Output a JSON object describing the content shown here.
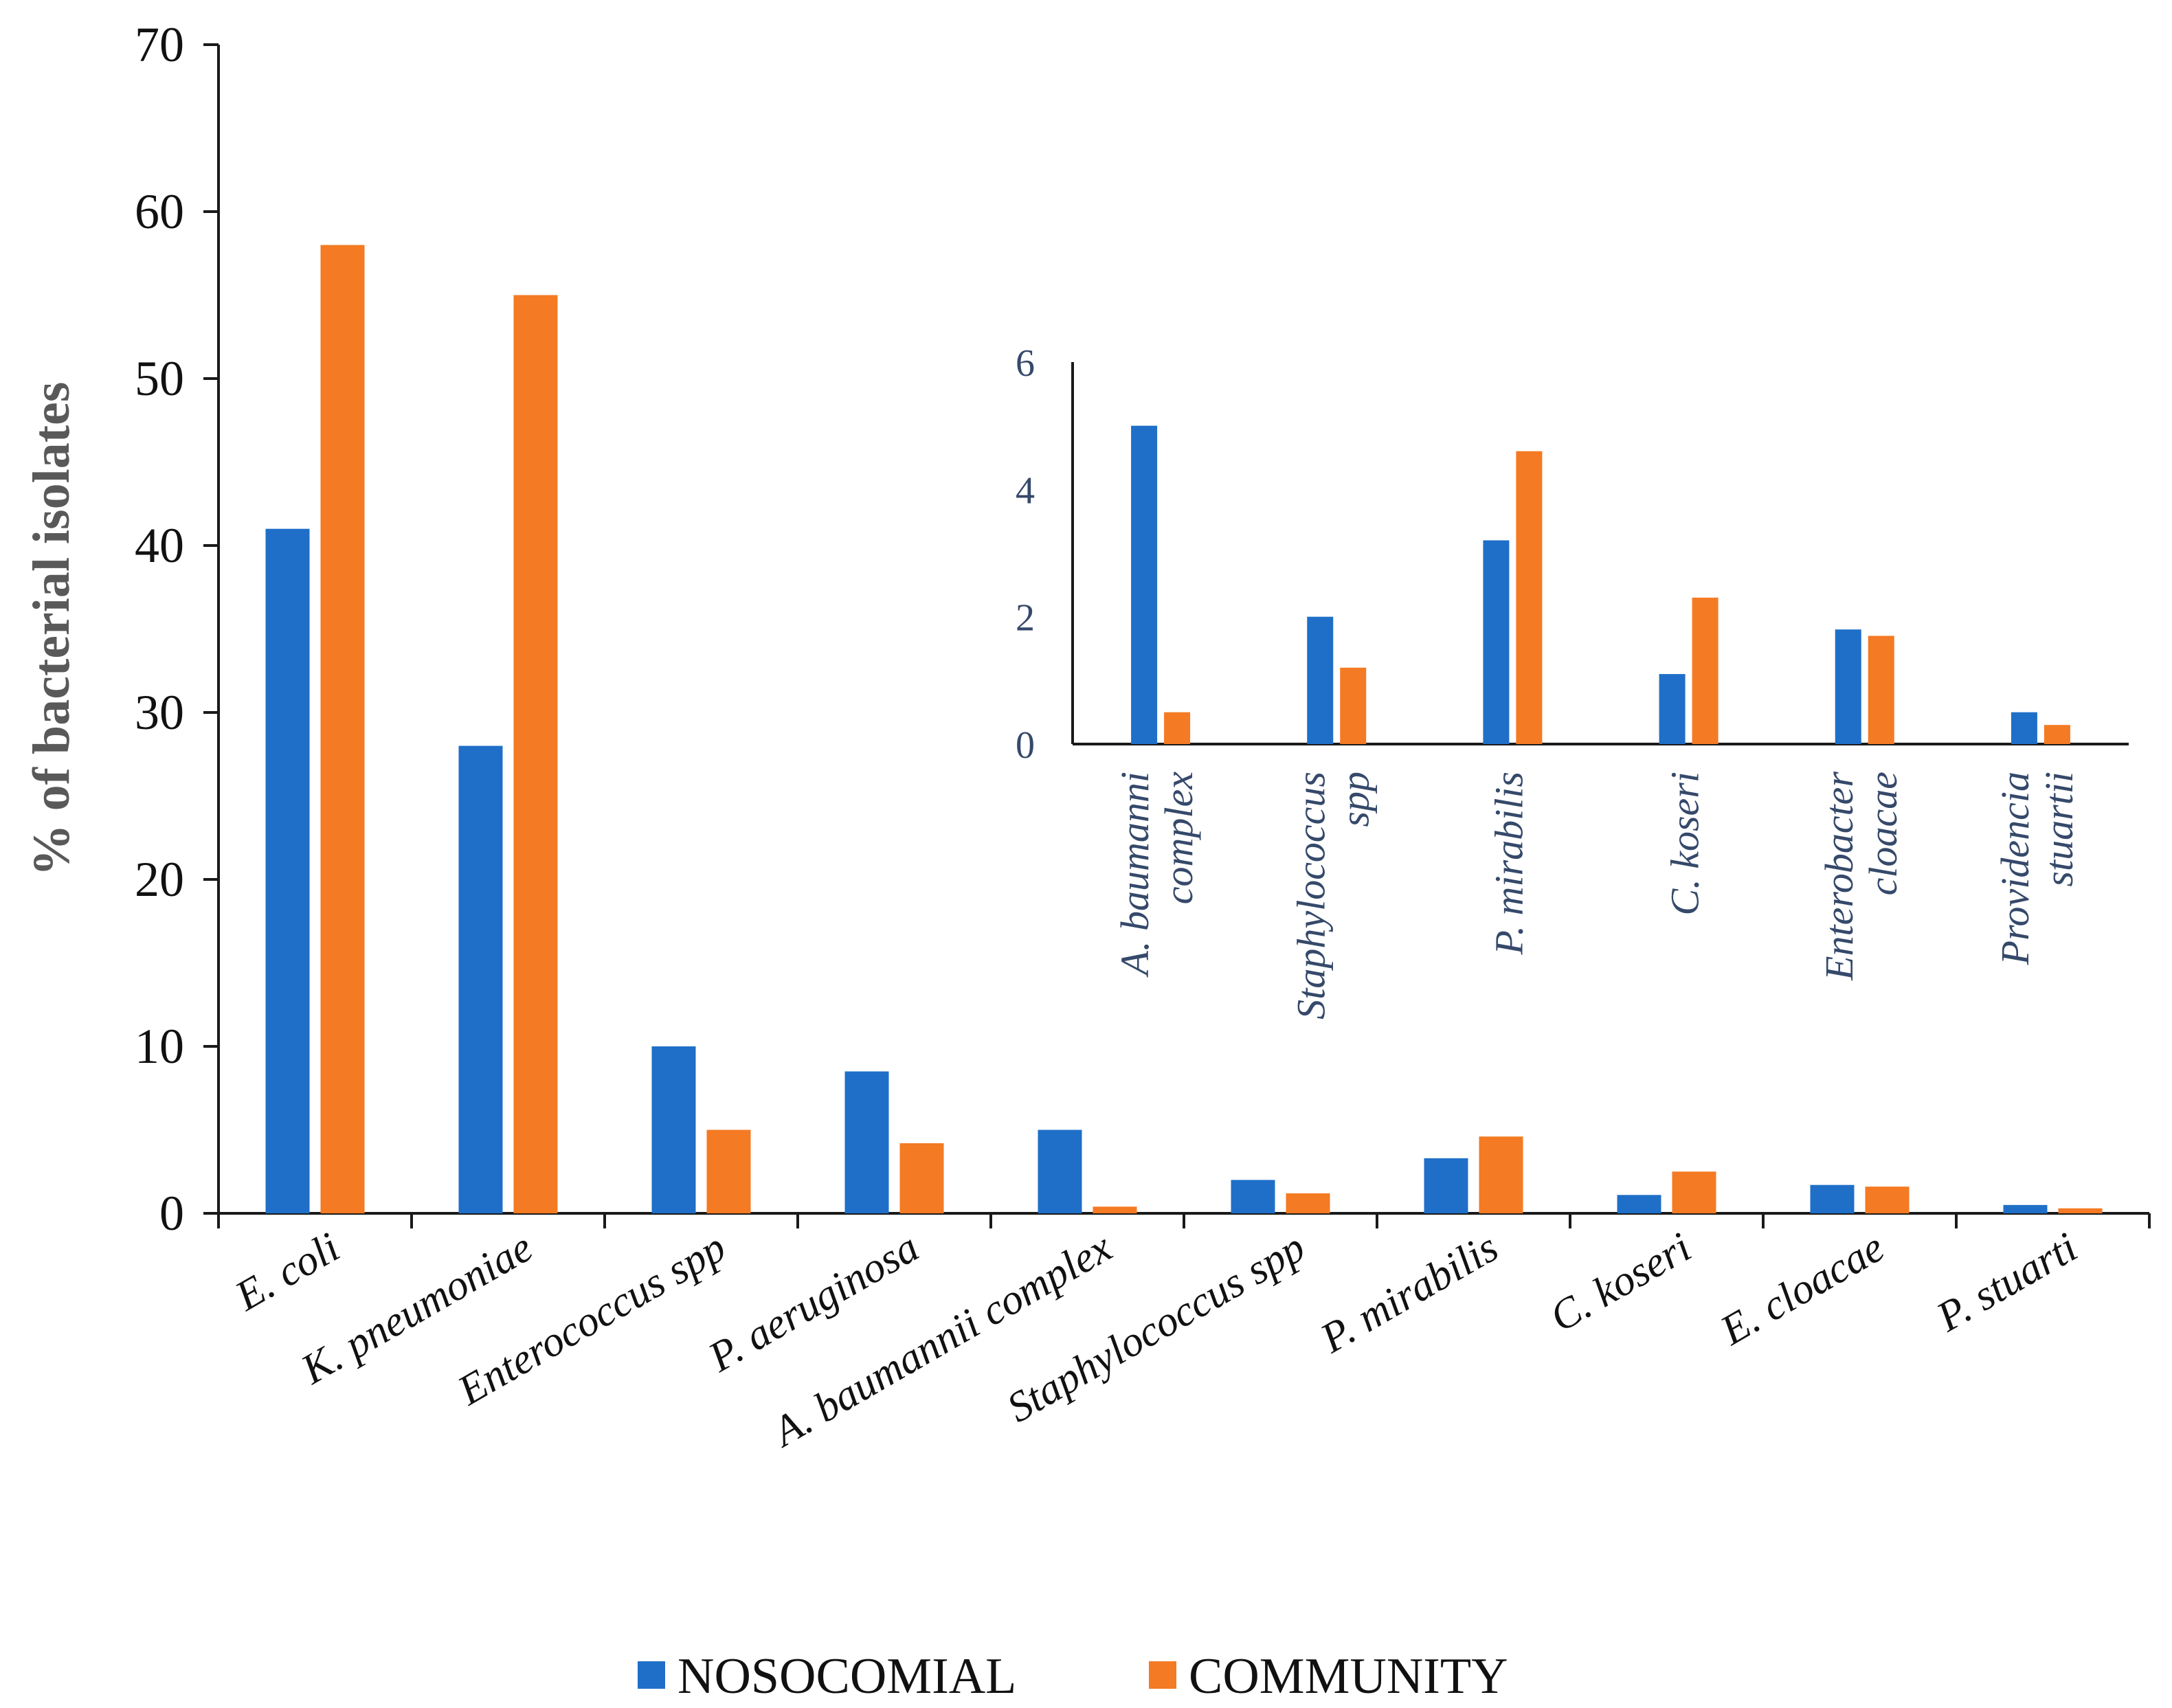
{
  "chart_data": [
    {
      "id": "main",
      "type": "bar",
      "title": "",
      "xlabel": "",
      "ylabel": "% of bacterial isolates",
      "ylim": [
        0,
        70
      ],
      "yticks": [
        "0",
        "10",
        "20",
        "30",
        "40",
        "50",
        "60",
        "70"
      ],
      "grid": false,
      "categories": [
        "E. coli",
        "K. pneumoniae",
        "Enterococcus spp",
        "P. aeruginosa",
        "A. baumannii complex",
        "Staphylococcus spp",
        "P. mirabilis",
        "C. koseri",
        "E. cloacae",
        "P. stuarti"
      ],
      "series": [
        {
          "name": "NOSOCOMIAL",
          "color": "#1f6fc8",
          "values": [
            41,
            28,
            10,
            8.5,
            5,
            2,
            3.3,
            1.1,
            1.7,
            0.5
          ]
        },
        {
          "name": "COMMUNITY",
          "color": "#f47a23",
          "values": [
            58,
            55,
            5,
            4.2,
            0.4,
            1.2,
            4.6,
            2.5,
            1.6,
            0.3
          ]
        }
      ],
      "legend": {
        "position": "bottom-center",
        "labels": [
          "NOSOCOMIAL",
          "COMMUNITY"
        ]
      }
    },
    {
      "id": "inset",
      "type": "bar",
      "title": "",
      "xlabel": "",
      "ylabel": "",
      "ylim": [
        0,
        6
      ],
      "yticks": [
        "0",
        "2",
        "4",
        "6"
      ],
      "grid": false,
      "categories": [
        [
          "A. baumanni",
          "complex"
        ],
        [
          "Staphylococcus",
          "spp"
        ],
        [
          "P. mirabilis"
        ],
        [
          "C. koseri"
        ],
        [
          "Enterobacter",
          "cloacae"
        ],
        [
          "Providencia",
          "stuartii"
        ]
      ],
      "series": [
        {
          "name": "NOSOCOMIAL",
          "color": "#1f6fc8",
          "values": [
            5,
            2,
            3.2,
            1.1,
            1.8,
            0.5
          ]
        },
        {
          "name": "COMMUNITY",
          "color": "#f47a23",
          "values": [
            0.5,
            1.2,
            4.6,
            2.3,
            1.7,
            0.3
          ]
        }
      ]
    }
  ]
}
